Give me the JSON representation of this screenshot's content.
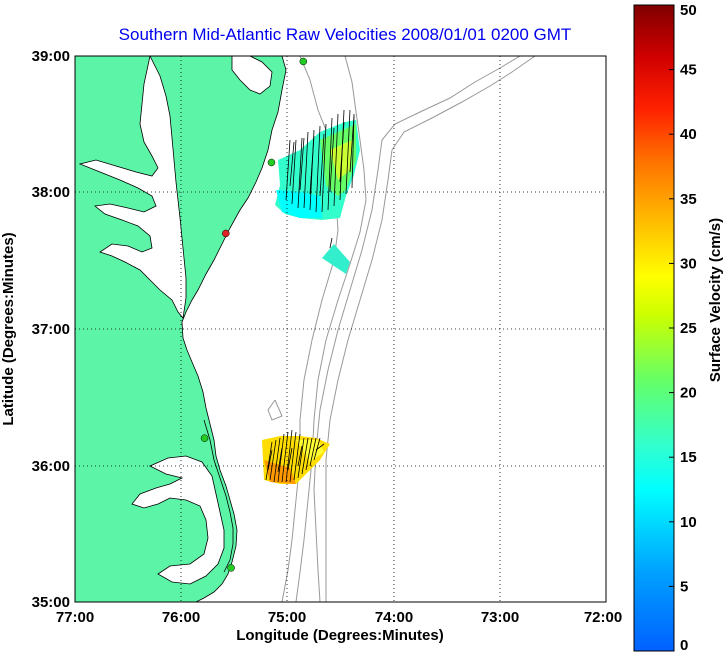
{
  "title": "Southern Mid-Atlantic Raw Velocities 2008/01/01 0200 GMT",
  "map": {
    "xlabel": "Longitude (Degrees:Minutes)",
    "ylabel": "Latitude (Degrees:Minutes)",
    "lon_range": [
      -77,
      -72
    ],
    "lat_range": [
      35,
      39
    ],
    "x_ticks": [
      "77:00",
      "76:00",
      "75:00",
      "74:00",
      "73:00",
      "72:00"
    ],
    "y_ticks": [
      "39:00",
      "38:00",
      "37:00",
      "36:00",
      "35:00"
    ],
    "grid": "dotted",
    "land_color": "#5cf5a8",
    "bathymetry_color": "#999999",
    "stations": [
      {
        "lon": -74.85,
        "lat": 38.96,
        "color": "#22cc22"
      },
      {
        "lon": -75.15,
        "lat": 38.22,
        "color": "#22cc22"
      },
      {
        "lon": -75.58,
        "lat": 37.7,
        "color": "#dd2222"
      },
      {
        "lon": -75.78,
        "lat": 36.2,
        "color": "#22cc22"
      },
      {
        "lon": -75.53,
        "lat": 35.25,
        "color": "#22cc22"
      }
    ]
  },
  "colorbar": {
    "label": "Surface Velocity (cm/s)",
    "min": 0,
    "max": 50,
    "ticks": [
      "0",
      "5",
      "10",
      "15",
      "20",
      "25",
      "30",
      "35",
      "40",
      "45",
      "50"
    ],
    "colormap": "jet"
  },
  "chart_data": {
    "type": "heatmap",
    "title": "Southern Mid-Atlantic Raw Velocities 2008/01/01 0200 GMT",
    "xlabel": "Longitude (Degrees:Minutes)",
    "ylabel": "Latitude (Degrees:Minutes)",
    "units": "cm/s",
    "regions": [
      {
        "lon_range": [
          -75.15,
          -74.35
        ],
        "lat_range": [
          37.85,
          38.6
        ],
        "speed_min": 10,
        "speed_max": 22,
        "mean_direction_deg": 0
      },
      {
        "lon_range": [
          -74.7,
          -74.45
        ],
        "lat_range": [
          37.45,
          37.65
        ],
        "speed_min": 14,
        "speed_max": 16,
        "mean_direction_deg": 0
      },
      {
        "lon_range": [
          -75.25,
          -74.6
        ],
        "lat_range": [
          35.9,
          36.45
        ],
        "speed_min": 26,
        "speed_max": 35,
        "mean_direction_deg": 0
      }
    ]
  }
}
